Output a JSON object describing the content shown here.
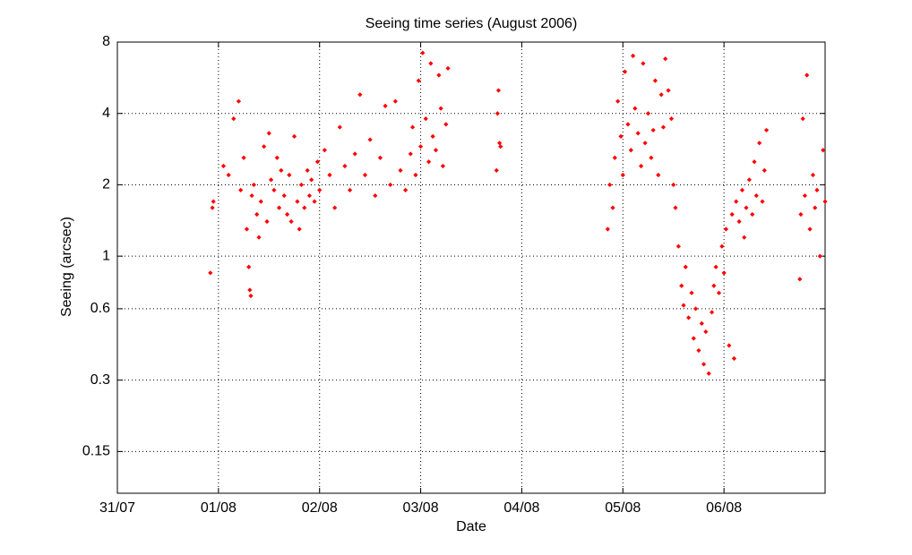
{
  "chart_data": {
    "type": "scatter",
    "title": "Seeing time series (August 2006)",
    "xlabel": "Date",
    "ylabel": "Seeing (arcsec)",
    "color": "#ff0000",
    "yscale": "log",
    "grid": true,
    "xlim": [
      0,
      7
    ],
    "ylim": [
      0.1,
      8
    ],
    "xticks": [
      {
        "value": 0,
        "label": "31/07"
      },
      {
        "value": 1,
        "label": "01/08"
      },
      {
        "value": 2,
        "label": "02/08"
      },
      {
        "value": 3,
        "label": "03/08"
      },
      {
        "value": 4,
        "label": "04/08"
      },
      {
        "value": 5,
        "label": "05/08"
      },
      {
        "value": 6,
        "label": "06/08"
      }
    ],
    "yticks": [
      0.15,
      0.3,
      0.6,
      1,
      2,
      4,
      8
    ],
    "x": [
      0.92,
      0.94,
      0.95,
      1.05,
      1.1,
      1.15,
      1.2,
      1.22,
      1.25,
      1.28,
      1.3,
      1.31,
      1.32,
      1.33,
      1.35,
      1.38,
      1.4,
      1.42,
      1.45,
      1.48,
      1.5,
      1.52,
      1.55,
      1.58,
      1.6,
      1.62,
      1.65,
      1.68,
      1.7,
      1.72,
      1.75,
      1.78,
      1.8,
      1.82,
      1.85,
      1.88,
      1.9,
      1.92,
      1.95,
      1.98,
      2.0,
      2.05,
      2.1,
      2.15,
      2.2,
      2.25,
      2.3,
      2.35,
      2.4,
      2.45,
      2.5,
      2.55,
      2.6,
      2.65,
      2.7,
      2.75,
      2.8,
      2.85,
      2.9,
      2.92,
      2.95,
      2.98,
      3.0,
      3.02,
      3.05,
      3.08,
      3.1,
      3.12,
      3.15,
      3.18,
      3.2,
      3.22,
      3.25,
      3.27,
      3.75,
      3.76,
      3.77,
      3.78,
      3.79,
      4.85,
      4.87,
      4.9,
      4.92,
      4.95,
      4.98,
      5.0,
      5.02,
      5.05,
      5.08,
      5.1,
      5.12,
      5.15,
      5.18,
      5.2,
      5.22,
      5.25,
      5.28,
      5.3,
      5.32,
      5.35,
      5.38,
      5.4,
      5.42,
      5.45,
      5.48,
      5.5,
      5.52,
      5.55,
      5.58,
      5.6,
      5.62,
      5.65,
      5.68,
      5.7,
      5.72,
      5.75,
      5.78,
      5.8,
      5.82,
      5.85,
      5.88,
      5.9,
      5.92,
      5.95,
      5.98,
      6.0,
      6.02,
      6.05,
      6.08,
      6.1,
      6.12,
      6.15,
      6.18,
      6.2,
      6.22,
      6.25,
      6.28,
      6.3,
      6.32,
      6.35,
      6.38,
      6.4,
      6.42,
      6.75,
      6.76,
      6.78,
      6.8,
      6.82,
      6.85,
      6.88,
      6.9,
      6.92,
      6.95,
      6.98,
      7.0
    ],
    "values": [
      0.85,
      1.6,
      1.7,
      2.4,
      2.2,
      3.8,
      4.5,
      1.9,
      2.6,
      1.3,
      0.9,
      0.72,
      0.68,
      1.8,
      2.0,
      1.5,
      1.2,
      1.7,
      2.9,
      1.4,
      3.3,
      2.1,
      1.9,
      2.6,
      1.6,
      2.3,
      1.8,
      1.5,
      2.2,
      1.4,
      3.2,
      1.7,
      1.3,
      2.0,
      1.6,
      2.3,
      1.8,
      2.1,
      1.7,
      2.5,
      1.9,
      2.8,
      2.2,
      1.6,
      3.5,
      2.4,
      1.9,
      2.7,
      4.8,
      2.2,
      3.1,
      1.8,
      2.6,
      4.3,
      2.0,
      4.5,
      2.3,
      1.9,
      2.7,
      3.5,
      2.2,
      5.5,
      2.9,
      7.2,
      3.8,
      2.5,
      6.5,
      3.2,
      2.8,
      5.8,
      4.2,
      2.4,
      3.6,
      6.2,
      2.3,
      4.0,
      5.0,
      3.0,
      2.9,
      1.3,
      2.0,
      1.6,
      2.6,
      4.5,
      3.2,
      2.2,
      6.0,
      3.6,
      2.8,
      7.0,
      4.2,
      3.3,
      2.4,
      6.5,
      3.0,
      4.0,
      2.6,
      3.4,
      5.5,
      2.2,
      4.8,
      3.5,
      6.8,
      5.0,
      3.8,
      2.0,
      1.6,
      1.1,
      0.75,
      0.62,
      0.9,
      0.55,
      0.7,
      0.45,
      0.6,
      0.4,
      0.52,
      0.35,
      0.48,
      0.32,
      0.58,
      0.75,
      0.9,
      0.7,
      1.1,
      0.85,
      1.3,
      0.42,
      1.5,
      0.37,
      1.7,
      1.4,
      1.9,
      1.2,
      1.6,
      2.1,
      1.5,
      2.5,
      1.8,
      3.0,
      1.7,
      2.3,
      3.4,
      0.8,
      1.5,
      3.8,
      1.8,
      5.8,
      1.3,
      2.2,
      1.6,
      1.9,
      1.0,
      2.8,
      1.7
    ]
  }
}
